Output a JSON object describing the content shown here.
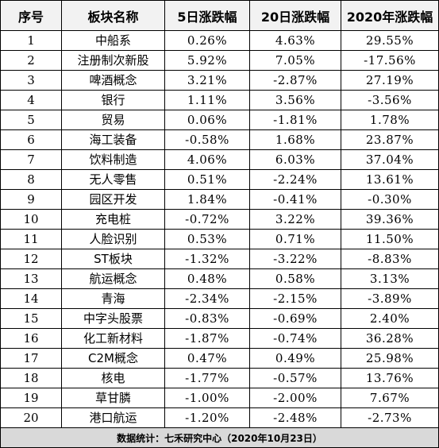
{
  "headers": [
    "序号",
    "板块名称",
    "5日涨跌幅",
    "20日涨跌幅",
    "2020年涨跌幅"
  ],
  "rows": [
    {
      "no": "1",
      "name": "中船系",
      "d5": "0.26%",
      "d20": "4.63%",
      "ytd": "29.55%"
    },
    {
      "no": "2",
      "name": "注册制次新股",
      "d5": "5.92%",
      "d20": "7.05%",
      "ytd": "-17.56%"
    },
    {
      "no": "3",
      "name": "啤酒概念",
      "d5": "3.21%",
      "d20": "-2.87%",
      "ytd": "27.19%"
    },
    {
      "no": "4",
      "name": "银行",
      "d5": "1.11%",
      "d20": "3.56%",
      "ytd": "-3.56%"
    },
    {
      "no": "5",
      "name": "贸易",
      "d5": "0.06%",
      "d20": "-1.81%",
      "ytd": "1.78%"
    },
    {
      "no": "6",
      "name": "海工装备",
      "d5": "-0.58%",
      "d20": "1.68%",
      "ytd": "23.87%"
    },
    {
      "no": "7",
      "name": "饮料制造",
      "d5": "4.06%",
      "d20": "6.03%",
      "ytd": "37.04%"
    },
    {
      "no": "8",
      "name": "无人零售",
      "d5": "0.51%",
      "d20": "-2.24%",
      "ytd": "13.61%"
    },
    {
      "no": "9",
      "name": "园区开发",
      "d5": "1.84%",
      "d20": "-0.41%",
      "ytd": "-0.30%"
    },
    {
      "no": "10",
      "name": "充电桩",
      "d5": "-0.72%",
      "d20": "3.22%",
      "ytd": "39.36%"
    },
    {
      "no": "11",
      "name": "人脸识别",
      "d5": "0.53%",
      "d20": "0.71%",
      "ytd": "11.50%"
    },
    {
      "no": "12",
      "name": "ST板块",
      "d5": "-1.32%",
      "d20": "-3.22%",
      "ytd": "-8.83%"
    },
    {
      "no": "13",
      "name": "航运概念",
      "d5": "0.48%",
      "d20": "0.58%",
      "ytd": "3.13%"
    },
    {
      "no": "14",
      "name": "青海",
      "d5": "-2.34%",
      "d20": "-2.15%",
      "ytd": "-3.89%"
    },
    {
      "no": "15",
      "name": "中字头股票",
      "d5": "-0.83%",
      "d20": "-0.69%",
      "ytd": "2.40%"
    },
    {
      "no": "16",
      "name": "化工新材料",
      "d5": "-1.87%",
      "d20": "-0.74%",
      "ytd": "36.28%"
    },
    {
      "no": "17",
      "name": "C2M概念",
      "d5": "0.47%",
      "d20": "0.49%",
      "ytd": "25.98%"
    },
    {
      "no": "18",
      "name": "核电",
      "d5": "-1.77%",
      "d20": "-0.57%",
      "ytd": "13.76%"
    },
    {
      "no": "19",
      "name": "草甘膦",
      "d5": "-1.00%",
      "d20": "-2.00%",
      "ytd": "7.67%"
    },
    {
      "no": "20",
      "name": "港口航运",
      "d5": "-1.20%",
      "d20": "-2.48%",
      "ytd": "-2.73%"
    }
  ],
  "footer": "数据统计：七禾研究中心（2020年10月23日）"
}
